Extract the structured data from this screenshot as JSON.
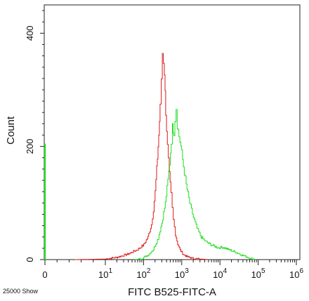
{
  "chart_data": {
    "type": "line",
    "xlabel": "FITC B525-FITC-A",
    "ylabel": "Count",
    "x_scale": "biexponential",
    "xlim": [
      0,
      1000000
    ],
    "ylim": [
      0,
      450
    ],
    "grid": false,
    "x_ticks": [
      {
        "value": 0,
        "label": "0"
      },
      {
        "value": 10,
        "label": "10",
        "exp": "1"
      },
      {
        "value": 100,
        "label": "10",
        "exp": "2"
      },
      {
        "value": 1000,
        "label": "10",
        "exp": "3"
      },
      {
        "value": 10000,
        "label": "10",
        "exp": "4"
      },
      {
        "value": 100000,
        "label": "10",
        "exp": "5"
      },
      {
        "value": 1000000,
        "label": "10",
        "exp": "6"
      }
    ],
    "y_ticks": [
      0,
      200,
      400
    ],
    "footer_text": "25000 Show",
    "series": [
      {
        "color": "#dd1a1a",
        "points": [
          [
            5,
            0
          ],
          [
            10,
            1
          ],
          [
            20,
            4
          ],
          [
            40,
            10
          ],
          [
            70,
            18
          ],
          [
            100,
            26
          ],
          [
            130,
            40
          ],
          [
            160,
            62
          ],
          [
            180,
            88
          ],
          [
            200,
            120
          ],
          [
            220,
            160
          ],
          [
            250,
            220
          ],
          [
            270,
            270
          ],
          [
            290,
            320
          ],
          [
            310,
            365
          ],
          [
            330,
            350
          ],
          [
            350,
            330
          ],
          [
            380,
            260
          ],
          [
            420,
            200
          ],
          [
            470,
            150
          ],
          [
            520,
            115
          ],
          [
            560,
            90
          ],
          [
            600,
            70
          ],
          [
            680,
            45
          ],
          [
            780,
            28
          ],
          [
            900,
            17
          ],
          [
            1100,
            9
          ],
          [
            1400,
            5
          ],
          [
            2000,
            2
          ],
          [
            3000,
            1
          ],
          [
            5000,
            0
          ]
        ]
      },
      {
        "color": "#22dd22",
        "points": [
          [
            60,
            0
          ],
          [
            90,
            2
          ],
          [
            130,
            8
          ],
          [
            180,
            18
          ],
          [
            240,
            38
          ],
          [
            300,
            65
          ],
          [
            370,
            100
          ],
          [
            430,
            140
          ],
          [
            480,
            170
          ],
          [
            530,
            210
          ],
          [
            570,
            235
          ],
          [
            620,
            225
          ],
          [
            660,
            248
          ],
          [
            710,
            268
          ],
          [
            760,
            238
          ],
          [
            840,
            218
          ],
          [
            950,
            200
          ],
          [
            1100,
            165
          ],
          [
            1300,
            132
          ],
          [
            1600,
            100
          ],
          [
            2000,
            75
          ],
          [
            2500,
            55
          ],
          [
            3200,
            40
          ],
          [
            4200,
            32
          ],
          [
            5500,
            27
          ],
          [
            7000,
            24
          ],
          [
            9000,
            21
          ],
          [
            11500,
            22
          ],
          [
            14000,
            20
          ],
          [
            18000,
            17
          ],
          [
            24000,
            14
          ],
          [
            32000,
            10
          ],
          [
            45000,
            6
          ],
          [
            65000,
            2
          ],
          [
            90000,
            0
          ]
        ]
      },
      {
        "color": "#22dd22",
        "points": [
          [
            0,
            0
          ],
          [
            0,
            205
          ]
        ]
      }
    ]
  }
}
